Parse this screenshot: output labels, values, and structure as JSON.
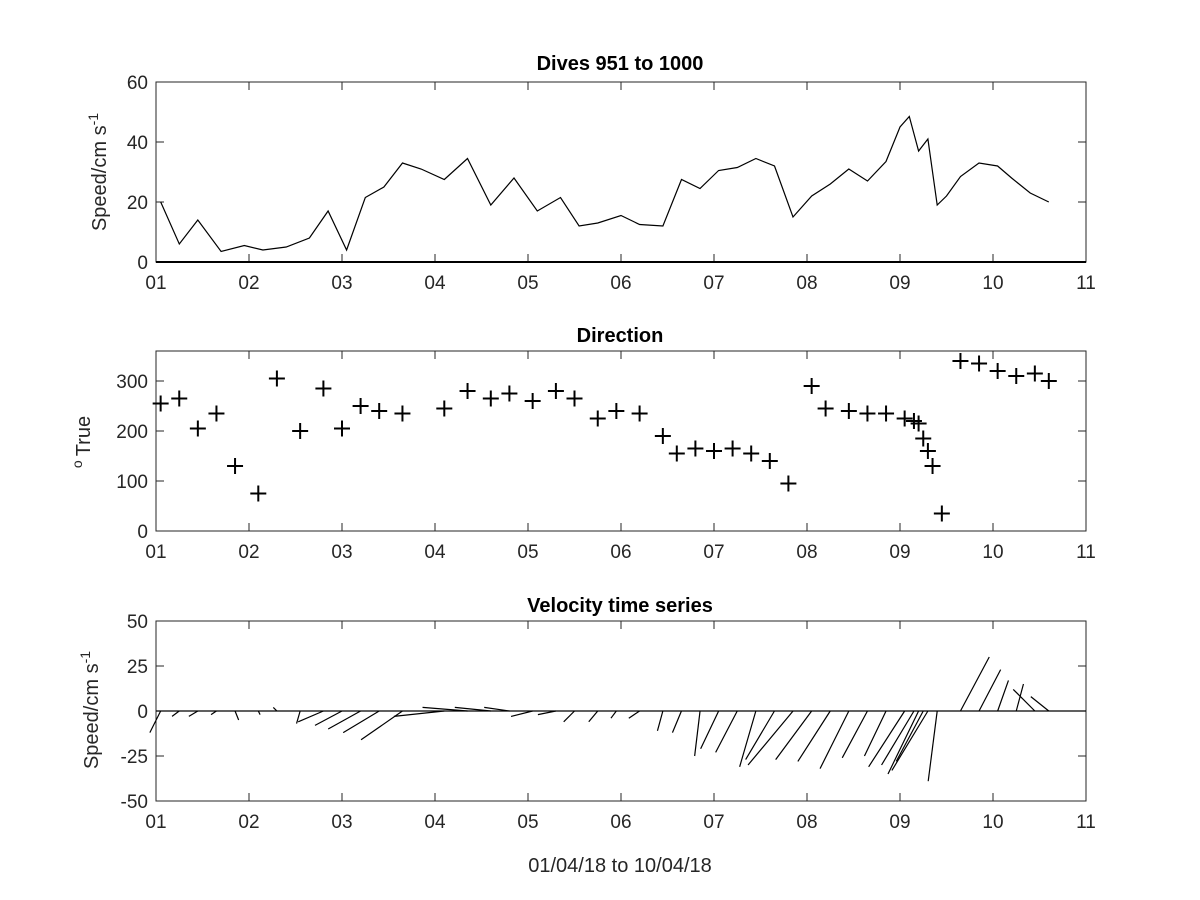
{
  "chart_data": [
    {
      "type": "line",
      "title": "Dives 951 to 1000",
      "ylabel": "Speed/cm s",
      "ylabel_sup": "-1",
      "xlim": [
        1,
        11
      ],
      "ylim": [
        0,
        60
      ],
      "xticks": [
        "01",
        "02",
        "03",
        "04",
        "05",
        "06",
        "07",
        "08",
        "09",
        "10",
        "11"
      ],
      "yticks": [
        "0",
        "20",
        "40",
        "60"
      ],
      "color": "#000000",
      "x": [
        1.05,
        1.25,
        1.45,
        1.7,
        1.95,
        2.15,
        2.4,
        2.65,
        2.85,
        3.05,
        3.25,
        3.45,
        3.65,
        3.85,
        4.1,
        4.35,
        4.6,
        4.85,
        5.1,
        5.35,
        5.55,
        5.75,
        6.0,
        6.2,
        6.45,
        6.65,
        6.85,
        7.05,
        7.25,
        7.45,
        7.65,
        7.85,
        8.05,
        8.25,
        8.45,
        8.65,
        8.85,
        9.0,
        9.1,
        9.2,
        9.3,
        9.4,
        9.5,
        9.65,
        9.85,
        10.05,
        10.2,
        10.4,
        10.6
      ],
      "y": [
        20,
        6,
        14,
        3.5,
        5.5,
        4,
        5,
        8,
        17,
        4,
        21.5,
        25,
        33,
        31,
        27.5,
        34.5,
        19,
        28,
        17,
        21.5,
        12,
        13,
        15.5,
        12.5,
        12,
        27.5,
        24.5,
        30.5,
        31.5,
        34.5,
        32,
        15,
        22,
        26,
        31,
        27,
        33.5,
        45,
        48.5,
        37,
        41,
        19,
        22,
        28.5,
        33,
        32,
        28,
        23,
        20
      ]
    },
    {
      "type": "scatter",
      "title": "Direction",
      "ylabel": "True",
      "ylabel_sup": "o",
      "marker": "+",
      "xlim": [
        1,
        11
      ],
      "ylim": [
        0,
        360
      ],
      "xticks": [
        "01",
        "02",
        "03",
        "04",
        "05",
        "06",
        "07",
        "08",
        "09",
        "10",
        "11"
      ],
      "yticks": [
        "0",
        "100",
        "200",
        "300"
      ],
      "color": "#000000",
      "x": [
        1.05,
        1.25,
        1.45,
        1.65,
        1.85,
        2.1,
        2.3,
        2.55,
        2.8,
        3.0,
        3.2,
        3.4,
        3.65,
        4.1,
        4.35,
        4.6,
        4.8,
        5.05,
        5.3,
        5.5,
        5.75,
        5.95,
        6.2,
        6.45,
        6.6,
        6.8,
        7.0,
        7.2,
        7.4,
        7.6,
        7.8,
        8.05,
        8.2,
        8.45,
        8.65,
        8.85,
        9.05,
        9.15,
        9.2,
        9.25,
        9.3,
        9.35,
        9.45,
        9.65,
        9.85,
        10.05,
        10.25,
        10.45,
        10.6
      ],
      "y": [
        255,
        265,
        205,
        235,
        130,
        75,
        305,
        200,
        285,
        205,
        250,
        240,
        235,
        245,
        280,
        265,
        275,
        260,
        280,
        265,
        225,
        240,
        235,
        190,
        155,
        165,
        160,
        165,
        155,
        140,
        95,
        290,
        245,
        240,
        235,
        235,
        225,
        220,
        215,
        185,
        160,
        130,
        35,
        340,
        335,
        320,
        310,
        315,
        300
      ]
    },
    {
      "type": "stick",
      "title": "Velocity time series",
      "ylabel": "Speed/cm s",
      "ylabel_sup": "-1",
      "xlabel": "01/04/18 to 10/04/18",
      "xlim": [
        1,
        11
      ],
      "ylim": [
        -50,
        50
      ],
      "xticks": [
        "01",
        "02",
        "03",
        "04",
        "05",
        "06",
        "07",
        "08",
        "09",
        "10",
        "11"
      ],
      "yticks": [
        "-50",
        "-25",
        "0",
        "25",
        "50"
      ],
      "color": "#000000",
      "x": [
        1.05,
        1.25,
        1.45,
        1.65,
        1.85,
        2.1,
        2.3,
        2.55,
        2.8,
        3.0,
        3.2,
        3.4,
        3.65,
        4.1,
        4.35,
        4.6,
        4.8,
        5.05,
        5.3,
        5.5,
        5.75,
        5.95,
        6.2,
        6.45,
        6.65,
        6.85,
        7.05,
        7.25,
        7.45,
        7.65,
        7.85,
        8.05,
        8.25,
        8.45,
        8.65,
        8.85,
        9.05,
        9.15,
        9.2,
        9.25,
        9.3,
        9.4,
        9.65,
        9.85,
        10.05,
        10.25,
        10.45,
        10.6
      ],
      "u": [
        -6,
        -4,
        -5,
        -3,
        2,
        1,
        -2,
        -2,
        -14,
        -15,
        -18,
        -20,
        -23,
        -28,
        -25,
        -20,
        -14,
        -12,
        -10,
        -6,
        -5,
        -3,
        -6,
        -3,
        -5,
        -3,
        -10,
        -12,
        -9,
        -16,
        -25,
        -20,
        -18,
        -16,
        -14,
        -12,
        -20,
        -18,
        -17,
        -15,
        -20,
        -5,
        16,
        12,
        6,
        4,
        -12,
        -10
      ],
      "v": [
        -12,
        -3,
        -3,
        -2,
        -5,
        -2,
        2,
        -7,
        -6,
        -8,
        -10,
        -12,
        -16,
        -3,
        2,
        2,
        2,
        -3,
        -2,
        -6,
        -6,
        -4,
        -4,
        -11,
        -12,
        -25,
        -21,
        -23,
        -31,
        -27,
        -30,
        -27,
        -28,
        -32,
        -26,
        -25,
        -31,
        -30,
        -35,
        -28,
        -33,
        -39,
        30,
        23,
        17,
        15,
        12,
        8
      ]
    }
  ]
}
